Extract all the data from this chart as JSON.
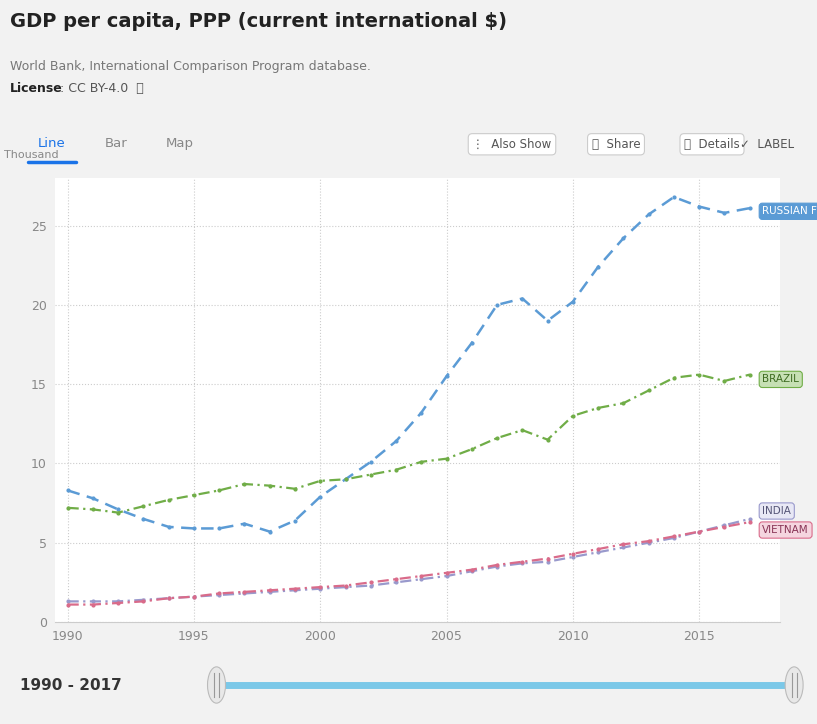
{
  "title": "GDP per capita, PPP (current international $)",
  "subtitle": "World Bank, International Comparison Program database.",
  "license_bold": "License",
  "license_rest": " : CC BY-4.0  ⓘ",
  "ylabel": "Thousand",
  "xlabel_bottom": "1990 - 2017",
  "tab_labels": [
    "Line",
    "Bar",
    "Map"
  ],
  "button_labels": [
    "⋮  Also Show",
    "  Share",
    "ⓘ  Details"
  ],
  "label_checkbox": "LABEL",
  "background_color": "#f2f2f2",
  "chart_area_bg": "#ffffff",
  "panel_bg": "#ffffff",
  "grid_color": "#cccccc",
  "ylim": [
    0,
    28
  ],
  "yticks": [
    0,
    5,
    10,
    15,
    20,
    25
  ],
  "xlim": [
    1989.5,
    2018.2
  ],
  "xticks": [
    1990,
    1995,
    2000,
    2005,
    2010,
    2015
  ],
  "russia": {
    "label": "RUSSIAN FEDERATION",
    "color": "#5b9bd5",
    "label_bg": "#5b9bd5",
    "label_text_color": "#ffffff",
    "years": [
      1990,
      1991,
      1992,
      1993,
      1994,
      1995,
      1996,
      1997,
      1998,
      1999,
      2000,
      2001,
      2002,
      2003,
      2004,
      2005,
      2006,
      2007,
      2008,
      2009,
      2010,
      2011,
      2012,
      2013,
      2014,
      2015,
      2016,
      2017
    ],
    "values": [
      8.3,
      7.8,
      7.1,
      6.5,
      6.0,
      5.9,
      5.9,
      6.2,
      5.7,
      6.4,
      7.9,
      9.0,
      10.1,
      11.4,
      13.2,
      15.5,
      17.6,
      20.0,
      20.4,
      19.0,
      20.2,
      22.4,
      24.2,
      25.7,
      26.8,
      26.2,
      25.8,
      26.1
    ]
  },
  "brazil": {
    "label": "BRAZIL",
    "color": "#70ad47",
    "label_bg": "#c6e0b4",
    "label_border": "#70ad47",
    "label_text_color": "#3d6b21",
    "years": [
      1990,
      1991,
      1992,
      1993,
      1994,
      1995,
      1996,
      1997,
      1998,
      1999,
      2000,
      2001,
      2002,
      2003,
      2004,
      2005,
      2006,
      2007,
      2008,
      2009,
      2010,
      2011,
      2012,
      2013,
      2014,
      2015,
      2016,
      2017
    ],
    "values": [
      7.2,
      7.1,
      6.9,
      7.3,
      7.7,
      8.0,
      8.3,
      8.7,
      8.6,
      8.4,
      8.9,
      9.0,
      9.3,
      9.6,
      10.1,
      10.3,
      10.9,
      11.6,
      12.1,
      11.5,
      13.0,
      13.5,
      13.8,
      14.6,
      15.4,
      15.6,
      15.2,
      15.6
    ]
  },
  "india": {
    "label": "INDIA",
    "color": "#9999cc",
    "label_bg": "#e8e8f5",
    "label_border": "#9999cc",
    "label_text_color": "#555577",
    "years": [
      1990,
      1991,
      1992,
      1993,
      1994,
      1995,
      1996,
      1997,
      1998,
      1999,
      2000,
      2001,
      2002,
      2003,
      2004,
      2005,
      2006,
      2007,
      2008,
      2009,
      2010,
      2011,
      2012,
      2013,
      2014,
      2015,
      2016,
      2017
    ],
    "values": [
      1.3,
      1.3,
      1.3,
      1.4,
      1.5,
      1.6,
      1.7,
      1.8,
      1.9,
      2.0,
      2.1,
      2.2,
      2.3,
      2.5,
      2.7,
      2.9,
      3.2,
      3.5,
      3.7,
      3.8,
      4.1,
      4.4,
      4.7,
      5.0,
      5.3,
      5.7,
      6.1,
      6.5
    ]
  },
  "vietnam": {
    "label": "VIETNAM",
    "color": "#d96b8a",
    "label_bg": "#f5d5df",
    "label_border": "#d96b8a",
    "label_text_color": "#883355",
    "years": [
      1990,
      1991,
      1992,
      1993,
      1994,
      1995,
      1996,
      1997,
      1998,
      1999,
      2000,
      2001,
      2002,
      2003,
      2004,
      2005,
      2006,
      2007,
      2008,
      2009,
      2010,
      2011,
      2012,
      2013,
      2014,
      2015,
      2016,
      2017
    ],
    "values": [
      1.1,
      1.1,
      1.2,
      1.3,
      1.5,
      1.6,
      1.8,
      1.9,
      2.0,
      2.1,
      2.2,
      2.3,
      2.5,
      2.7,
      2.9,
      3.1,
      3.3,
      3.6,
      3.8,
      4.0,
      4.3,
      4.6,
      4.9,
      5.1,
      5.4,
      5.7,
      6.0,
      6.3
    ]
  },
  "tab_active_color": "#1a73e8",
  "slider_color": "#7bc8e8",
  "slider_handle_color": "#e8e8e8",
  "footer_bg": "#f0f0f0",
  "footer_border": "#dddddd"
}
